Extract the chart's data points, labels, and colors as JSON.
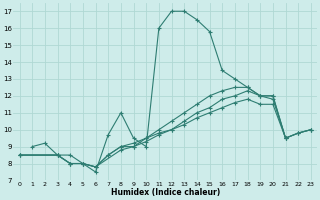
{
  "xlabel": "Humidex (Indice chaleur)",
  "bg_color": "#ceecea",
  "line_color": "#2e7d72",
  "grid_color": "#b0d8d4",
  "xlim": [
    -0.5,
    23.5
  ],
  "ylim": [
    7,
    17.5
  ],
  "xticks": [
    0,
    1,
    2,
    3,
    4,
    5,
    6,
    7,
    8,
    9,
    10,
    11,
    12,
    13,
    14,
    15,
    16,
    17,
    18,
    19,
    20,
    21,
    22,
    23
  ],
  "yticks": [
    7,
    8,
    9,
    10,
    11,
    12,
    13,
    14,
    15,
    16,
    17
  ],
  "lines": [
    {
      "x": [
        1,
        2,
        3,
        4,
        5,
        6,
        7,
        8,
        9,
        10,
        11,
        12,
        13,
        14,
        15,
        16,
        17,
        18,
        19,
        20,
        21
      ],
      "y": [
        9,
        9.2,
        8.5,
        8.5,
        8.0,
        7.5,
        9.7,
        11.0,
        9.5,
        9.0,
        16.0,
        17.0,
        17.0,
        16.5,
        15.8,
        13.5,
        13.0,
        12.5,
        12.0,
        12.0,
        9.5
      ]
    },
    {
      "x": [
        0,
        3,
        4,
        5,
        6,
        7,
        8,
        9,
        10,
        11,
        12,
        13,
        14,
        15,
        16,
        17,
        18,
        19,
        20,
        21,
        22,
        23
      ],
      "y": [
        8.5,
        8.5,
        8.0,
        8.0,
        7.8,
        8.5,
        9.0,
        9.0,
        9.5,
        10.0,
        10.5,
        11.0,
        11.5,
        12.0,
        12.3,
        12.5,
        12.5,
        12.0,
        12.0,
        9.5,
        9.8,
        10.0
      ]
    },
    {
      "x": [
        0,
        3,
        4,
        5,
        6,
        7,
        8,
        9,
        10,
        11,
        12,
        13,
        14,
        15,
        16,
        17,
        18,
        19,
        20,
        21,
        22,
        23
      ],
      "y": [
        8.5,
        8.5,
        8.0,
        8.0,
        7.8,
        8.5,
        9.0,
        9.2,
        9.5,
        9.8,
        10.0,
        10.5,
        11.0,
        11.3,
        11.8,
        12.0,
        12.3,
        12.0,
        11.8,
        9.5,
        9.8,
        10.0
      ]
    },
    {
      "x": [
        0,
        3,
        4,
        5,
        6,
        8,
        9,
        10,
        11,
        12,
        13,
        14,
        15,
        16,
        17,
        18,
        19,
        20,
        21,
        22,
        23
      ],
      "y": [
        8.5,
        8.5,
        8.0,
        8.0,
        7.8,
        8.8,
        9.0,
        9.3,
        9.7,
        10.0,
        10.3,
        10.7,
        11.0,
        11.3,
        11.6,
        11.8,
        11.5,
        11.5,
        9.5,
        9.8,
        10.0
      ]
    }
  ]
}
